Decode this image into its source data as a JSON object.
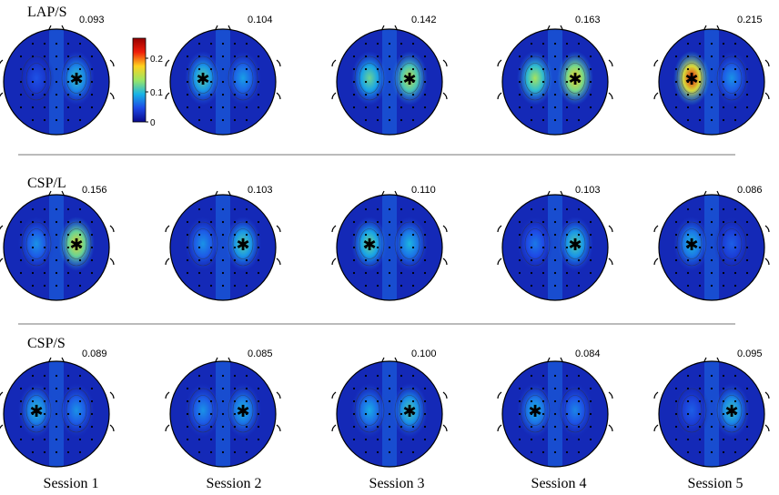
{
  "figure": {
    "sessions": [
      "Session 1",
      "Session 2",
      "Session 3",
      "Session 4",
      "Session 5"
    ],
    "colorbar": {
      "ticks": [
        "0.2",
        "0.1",
        "0"
      ],
      "range": [
        0,
        0.25
      ],
      "colors": [
        "#0a0a8c",
        "#1e4ae6",
        "#18b4e6",
        "#9be664",
        "#ffd21e",
        "#f01e0a",
        "#960000"
      ]
    },
    "rows": [
      {
        "label": "LAP/S",
        "maps": [
          {
            "value": "0.093",
            "peak": 0.093,
            "spots": [
              {
                "side": "right",
                "strength": 0.093,
                "star": true
              },
              {
                "side": "left",
                "strength": 0.045
              }
            ]
          },
          {
            "value": "0.104",
            "peak": 0.104,
            "spots": [
              {
                "side": "left",
                "strength": 0.104,
                "star": true
              },
              {
                "side": "right",
                "strength": 0.075
              }
            ]
          },
          {
            "value": "0.142",
            "peak": 0.142,
            "spots": [
              {
                "side": "right",
                "strength": 0.142,
                "star": true
              },
              {
                "side": "left",
                "strength": 0.11
              }
            ]
          },
          {
            "value": "0.163",
            "peak": 0.163,
            "spots": [
              {
                "side": "right",
                "strength": 0.163,
                "star": true
              },
              {
                "side": "left",
                "strength": 0.13
              }
            ]
          },
          {
            "value": "0.215",
            "peak": 0.215,
            "spots": [
              {
                "side": "left",
                "strength": 0.215,
                "star": true
              },
              {
                "side": "right",
                "strength": 0.07
              }
            ]
          }
        ]
      },
      {
        "label": "CSP/L",
        "maps": [
          {
            "value": "0.156",
            "peak": 0.156,
            "spots": [
              {
                "side": "right",
                "strength": 0.156,
                "star": true
              },
              {
                "side": "left",
                "strength": 0.07
              }
            ]
          },
          {
            "value": "0.103",
            "peak": 0.103,
            "spots": [
              {
                "side": "right",
                "strength": 0.103,
                "star": true
              },
              {
                "side": "left",
                "strength": 0.07
              }
            ]
          },
          {
            "value": "0.110",
            "peak": 0.11,
            "spots": [
              {
                "side": "left",
                "strength": 0.11,
                "star": true
              },
              {
                "side": "right",
                "strength": 0.085
              }
            ]
          },
          {
            "value": "0.103",
            "peak": 0.103,
            "spots": [
              {
                "side": "right",
                "strength": 0.103,
                "star": true
              },
              {
                "side": "left",
                "strength": 0.06
              }
            ]
          },
          {
            "value": "0.086",
            "peak": 0.086,
            "spots": [
              {
                "side": "left",
                "strength": 0.086,
                "star": true
              },
              {
                "side": "right",
                "strength": 0.05
              }
            ]
          }
        ]
      },
      {
        "label": "CSP/S",
        "maps": [
          {
            "value": "0.089",
            "peak": 0.089,
            "spots": [
              {
                "side": "left",
                "strength": 0.089,
                "star": true
              },
              {
                "side": "right",
                "strength": 0.07
              }
            ]
          },
          {
            "value": "0.085",
            "peak": 0.085,
            "spots": [
              {
                "side": "right",
                "strength": 0.085,
                "star": true
              },
              {
                "side": "left",
                "strength": 0.07
              }
            ]
          },
          {
            "value": "0.100",
            "peak": 0.1,
            "spots": [
              {
                "side": "right",
                "strength": 0.1,
                "star": true
              },
              {
                "side": "left",
                "strength": 0.08
              }
            ]
          },
          {
            "value": "0.084",
            "peak": 0.084,
            "spots": [
              {
                "side": "left",
                "strength": 0.084,
                "star": true
              },
              {
                "side": "right",
                "strength": 0.065
              }
            ]
          },
          {
            "value": "0.095",
            "peak": 0.095,
            "spots": [
              {
                "side": "right",
                "strength": 0.095,
                "star": true
              },
              {
                "side": "left",
                "strength": 0.05
              }
            ]
          }
        ]
      }
    ]
  }
}
